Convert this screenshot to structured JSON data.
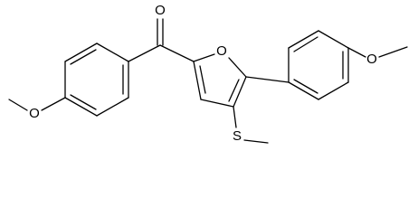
{
  "atoms": [
    {
      "label": "O"
    },
    {
      "label": "O"
    },
    {
      "label": "O"
    },
    {
      "label": "O"
    },
    {
      "label": "S"
    }
  ]
}
